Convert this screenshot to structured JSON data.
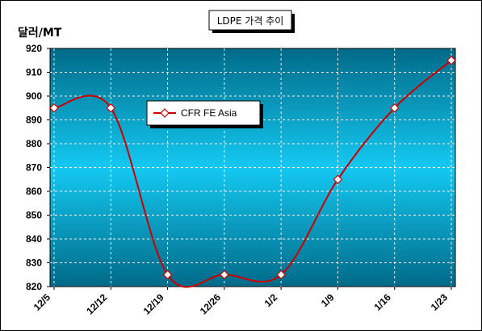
{
  "chart_data": {
    "type": "line",
    "title": "LDPE 가격 추이",
    "ylabel": "달러/MT",
    "categories": [
      "12/5",
      "12/12",
      "12/19",
      "12/26",
      "1/2",
      "1/9",
      "1/16",
      "1/23"
    ],
    "series": [
      {
        "name": "CFR FE Asia",
        "values": [
          895,
          895,
          825,
          825,
          825,
          865,
          895,
          915
        ],
        "color": "#cc0000"
      }
    ],
    "ylim": [
      820,
      920
    ],
    "yticks": [
      820,
      830,
      840,
      850,
      860,
      870,
      880,
      890,
      900,
      910,
      920
    ],
    "grid": true,
    "legend_position": "upper-left-inside",
    "colors": {
      "plot_bg_top": "#006a88",
      "plot_bg_mid": "#14c9f2",
      "plot_bg_bottom": "#006a88",
      "line": "#cc0000",
      "marker_fill": "#ffffff"
    }
  }
}
